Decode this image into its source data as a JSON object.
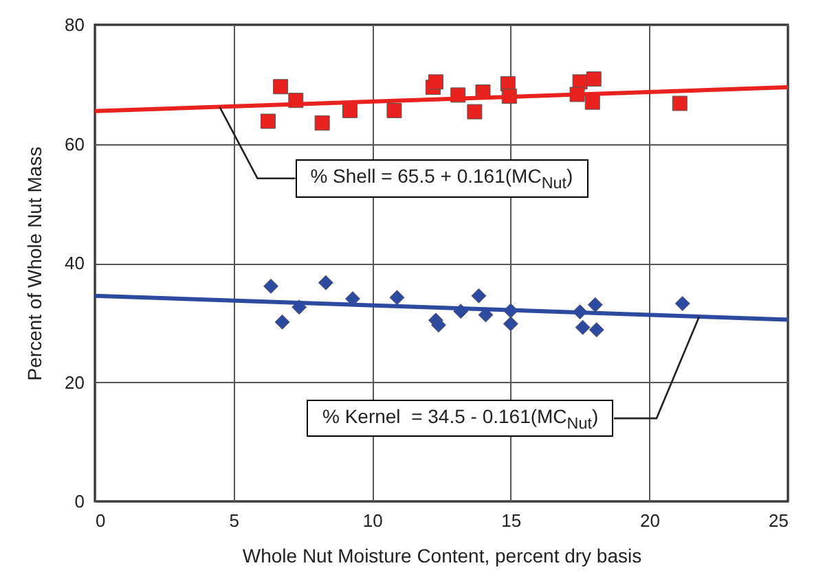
{
  "chart_data": {
    "type": "scatter",
    "xlabel": "Whole Nut Moisture Content, percent dry basis",
    "ylabel": "Percent of Whole Nut Mass",
    "xlim": [
      0,
      25
    ],
    "xticks": [
      0,
      5,
      10,
      15,
      20,
      25
    ],
    "ylim": [
      0,
      80
    ],
    "yticks": [
      0,
      20,
      40,
      60,
      80
    ],
    "grid": true,
    "series": [
      {
        "marker": "square",
        "color": "#e8221f",
        "x": [
          6.7,
          7.25,
          6.25,
          8.2,
          9.2,
          10.8,
          12.2,
          12.3,
          13.1,
          13.7,
          14.0,
          14.9,
          14.95,
          17.5,
          17.4,
          18.0,
          17.95,
          21.1
        ],
        "values": [
          69.6,
          67.3,
          63.8,
          63.5,
          65.6,
          65.6,
          69.5,
          70.4,
          68.2,
          65.4,
          68.7,
          70.1,
          68.0,
          70.4,
          68.3,
          70.9,
          67.0,
          66.8
        ]
      },
      {
        "marker": "diamond",
        "color": "#2e4aa0",
        "x": [
          6.35,
          6.76,
          7.37,
          8.33,
          9.3,
          10.9,
          12.3,
          12.4,
          13.2,
          13.85,
          14.1,
          15.0,
          15.0,
          17.5,
          17.6,
          18.05,
          18.1,
          21.2
        ],
        "values": [
          36.1,
          30.1,
          32.6,
          36.7,
          34.0,
          34.2,
          30.4,
          29.6,
          31.9,
          34.5,
          31.3,
          32.0,
          29.8,
          31.8,
          29.2,
          33.0,
          28.8,
          33.2
        ]
      },
      {
        "type": "line",
        "color": "#e8221f",
        "x": [
          0,
          25
        ],
        "values": [
          65.5,
          69.5
        ]
      },
      {
        "type": "line",
        "color": "#2e4aa0",
        "x": [
          0,
          25
        ],
        "values": [
          34.5,
          30.5
        ]
      }
    ],
    "annotations": [
      {
        "text": "% Shell = 65.5 + 0.161(MC$_{Nut}$)",
        "x": 4.5,
        "y": 66.2
      },
      {
        "text": "% Kernel  = 34.5 - 0.161(MC$_{Nut}$)",
        "x": 21.8,
        "y": 31.0
      }
    ]
  }
}
